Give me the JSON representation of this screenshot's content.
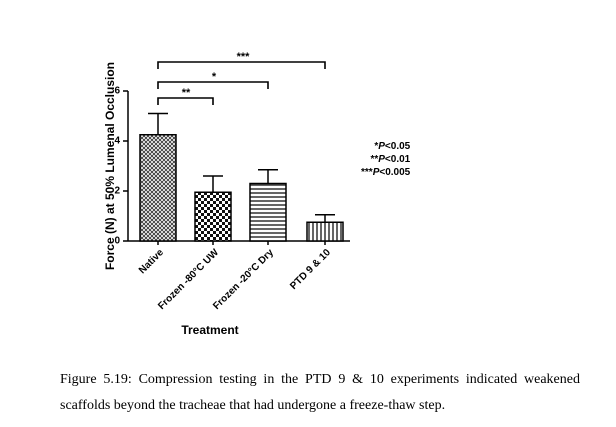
{
  "chart_data": {
    "type": "bar",
    "categories": [
      "Native",
      "Frozen -80°C UW",
      "Frozen -20°C Dry",
      "PTD 9 & 10"
    ],
    "values": [
      4.25,
      1.95,
      2.3,
      0.75
    ],
    "errors": [
      0.85,
      0.65,
      0.55,
      0.3
    ],
    "patterns": [
      "crosshatch",
      "checker",
      "horizontal",
      "vertical"
    ],
    "xlabel": "Treatment",
    "ylabel": "Force (N) at 50% Lumenal Occlusion",
    "ylim": [
      0,
      6
    ],
    "yticks": [
      0,
      2,
      4,
      6
    ],
    "significance": [
      {
        "from": 0,
        "to": 1,
        "label": "**"
      },
      {
        "from": 0,
        "to": 2,
        "label": "*"
      },
      {
        "from": 0,
        "to": 3,
        "label": "***"
      }
    ]
  },
  "legend": {
    "line1_prefix": "*",
    "line1_p": "P",
    "line1_value": "<0.05",
    "line2_prefix": "**",
    "line2_p": "P",
    "line2_value": "<0.01",
    "line3_prefix": "***",
    "line3_p": "P",
    "line3_value": "<0.005"
  },
  "caption": "Figure 5.19: Compression testing in the PTD 9 & 10 experiments indicated weakened scaffolds beyond the tracheae that had undergone a freeze-thaw step."
}
